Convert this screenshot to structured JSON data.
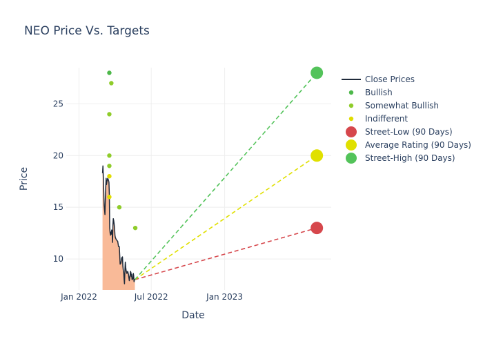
{
  "chart_data": {
    "type": "line",
    "title": "NEO Price Vs. Targets",
    "xlabel": "Date",
    "ylabel": "Price",
    "x_range": [
      "2021-11-30",
      "2023-09-25"
    ],
    "ylim": [
      7,
      28.5
    ],
    "x_ticks": [
      {
        "date": "2022-01-01",
        "label": "Jan 2022"
      },
      {
        "date": "2022-07-01",
        "label": "Jul 2022"
      },
      {
        "date": "2023-01-01",
        "label": "Jan 2023"
      }
    ],
    "y_ticks": [
      10,
      15,
      20,
      25
    ],
    "grid": true,
    "legend_position": "right",
    "colors": {
      "close": "#1f2a3a",
      "area_fill": "#f9ba98",
      "bullish": "#4db84a",
      "somewhat_bullish": "#8fcc2a",
      "indifferent": "#e0dc00",
      "street_low": "#d6474c",
      "average": "#e0e000",
      "street_high": "#53c35a",
      "grid": "#eeeeee",
      "text": "#2a3f5f"
    },
    "series": [
      {
        "name": "Close Prices",
        "kind": "line_area",
        "points": [
          [
            "2022-03-01",
            18.3
          ],
          [
            "2022-03-02",
            19.0
          ],
          [
            "2022-03-03",
            17.8
          ],
          [
            "2022-03-04",
            16.5
          ],
          [
            "2022-03-05",
            15.2
          ],
          [
            "2022-03-07",
            14.3
          ],
          [
            "2022-03-08",
            15.8
          ],
          [
            "2022-03-09",
            17.0
          ],
          [
            "2022-03-10",
            17.8
          ],
          [
            "2022-03-11",
            17.2
          ],
          [
            "2022-03-12",
            17.5
          ],
          [
            "2022-03-14",
            17.8
          ],
          [
            "2022-03-16",
            17.6
          ],
          [
            "2022-03-17",
            17.4
          ],
          [
            "2022-03-18",
            16.2
          ],
          [
            "2022-03-19",
            13.0
          ],
          [
            "2022-03-20",
            12.5
          ],
          [
            "2022-03-21",
            12.3
          ],
          [
            "2022-03-22",
            12.6
          ],
          [
            "2022-03-23",
            12.4
          ],
          [
            "2022-03-24",
            12.8
          ],
          [
            "2022-03-25",
            12.6
          ],
          [
            "2022-03-26",
            11.6
          ],
          [
            "2022-03-27",
            13.3
          ],
          [
            "2022-03-28",
            13.9
          ],
          [
            "2022-03-29",
            13.7
          ],
          [
            "2022-03-30",
            13.4
          ],
          [
            "2022-03-31",
            13.0
          ],
          [
            "2022-04-01",
            12.3
          ],
          [
            "2022-04-02",
            12.1
          ],
          [
            "2022-04-04",
            11.9
          ],
          [
            "2022-04-06",
            11.8
          ],
          [
            "2022-04-08",
            11.7
          ],
          [
            "2022-04-10",
            11.2
          ],
          [
            "2022-04-12",
            11.2
          ],
          [
            "2022-04-13",
            10.4
          ],
          [
            "2022-04-14",
            9.5
          ],
          [
            "2022-04-16",
            9.6
          ],
          [
            "2022-04-18",
            10.1
          ],
          [
            "2022-04-20",
            10.2
          ],
          [
            "2022-04-21",
            9.3
          ],
          [
            "2022-04-22",
            8.9
          ],
          [
            "2022-04-23",
            8.7
          ],
          [
            "2022-04-24",
            8.0
          ],
          [
            "2022-04-25",
            7.6
          ],
          [
            "2022-04-26",
            8.8
          ],
          [
            "2022-04-27",
            9.7
          ],
          [
            "2022-04-28",
            9.2
          ],
          [
            "2022-04-29",
            8.9
          ],
          [
            "2022-05-01",
            8.6
          ],
          [
            "2022-05-03",
            8.8
          ],
          [
            "2022-05-05",
            8.5
          ],
          [
            "2022-05-06",
            8.2
          ],
          [
            "2022-05-07",
            7.9
          ],
          [
            "2022-05-09",
            8.4
          ],
          [
            "2022-05-10",
            8.8
          ],
          [
            "2022-05-11",
            8.7
          ],
          [
            "2022-05-12",
            8.3
          ],
          [
            "2022-05-13",
            8.5
          ],
          [
            "2022-05-14",
            8.0
          ],
          [
            "2022-05-16",
            8.1
          ],
          [
            "2022-05-17",
            8.6
          ],
          [
            "2022-05-18",
            8.4
          ],
          [
            "2022-05-19",
            7.8
          ],
          [
            "2022-05-20",
            8.0
          ],
          [
            "2022-05-21",
            8.0
          ]
        ]
      },
      {
        "name": "Bullish",
        "kind": "markers",
        "points": [
          [
            "2022-03-18",
            28.0
          ]
        ]
      },
      {
        "name": "Somewhat Bullish",
        "kind": "markers",
        "points": [
          [
            "2022-03-18",
            24.0
          ],
          [
            "2022-03-18",
            20.0
          ],
          [
            "2022-03-18",
            19.0
          ],
          [
            "2022-03-23",
            27.0
          ],
          [
            "2022-04-12",
            15.0
          ],
          [
            "2022-05-22",
            13.0
          ]
        ]
      },
      {
        "name": "Indifferent",
        "kind": "markers",
        "points": [
          [
            "2022-03-18",
            18.0
          ],
          [
            "2022-03-18",
            16.0
          ]
        ]
      },
      {
        "name": "Street-Low (90 Days)",
        "kind": "target",
        "from": [
          "2022-05-21",
          8.0
        ],
        "to": [
          "2023-08-20",
          13.0
        ]
      },
      {
        "name": "Average Rating (90 Days)",
        "kind": "target",
        "from": [
          "2022-05-21",
          8.0
        ],
        "to": [
          "2023-08-20",
          20.0
        ]
      },
      {
        "name": "Street-High (90 Days)",
        "kind": "target",
        "from": [
          "2022-05-21",
          8.0
        ],
        "to": [
          "2023-08-20",
          28.0
        ]
      }
    ]
  }
}
